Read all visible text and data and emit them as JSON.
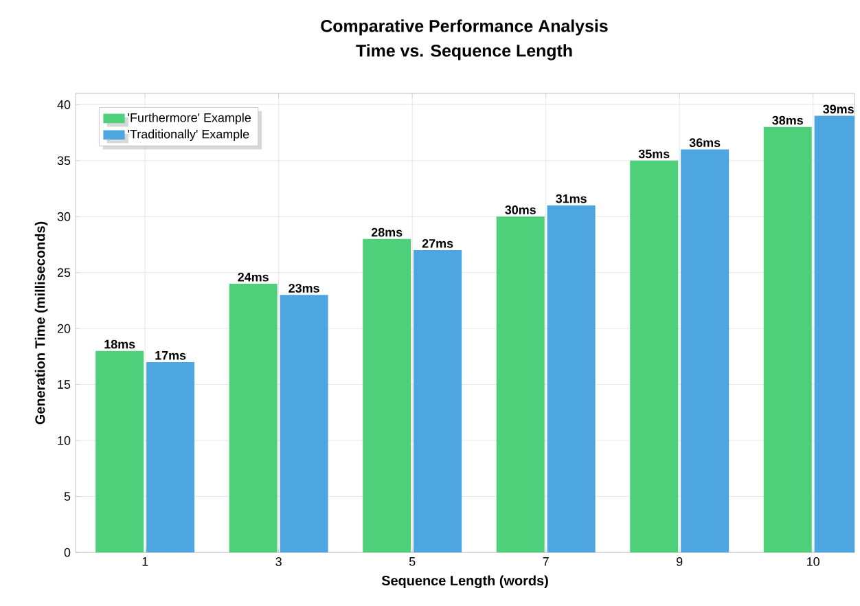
{
  "chart_data": {
    "type": "bar",
    "title": "Comparative Performance Analysis",
    "subtitle": "Time vs. Sequence Length",
    "xlabel": "Sequence Length (words)",
    "ylabel": "Generation Time (milliseconds)",
    "categories": [
      "1",
      "3",
      "5",
      "7",
      "9",
      "10"
    ],
    "series": [
      {
        "name": "'Furthermore' Example",
        "color": "#4ecf7a",
        "values": [
          18,
          24,
          28,
          30,
          35,
          38
        ],
        "value_labels": [
          "18ms",
          "24ms",
          "28ms",
          "30ms",
          "35ms",
          "38ms"
        ]
      },
      {
        "name": "'Traditionally' Example",
        "color": "#4da6e0",
        "values": [
          17,
          23,
          27,
          31,
          36,
          39
        ],
        "value_labels": [
          "17ms",
          "23ms",
          "27ms",
          "31ms",
          "36ms",
          "39ms"
        ]
      }
    ],
    "ylim": [
      0,
      41
    ],
    "yticks": [
      0,
      5,
      10,
      15,
      20,
      25,
      30,
      35,
      40
    ],
    "grid": true,
    "legend": "top left"
  }
}
